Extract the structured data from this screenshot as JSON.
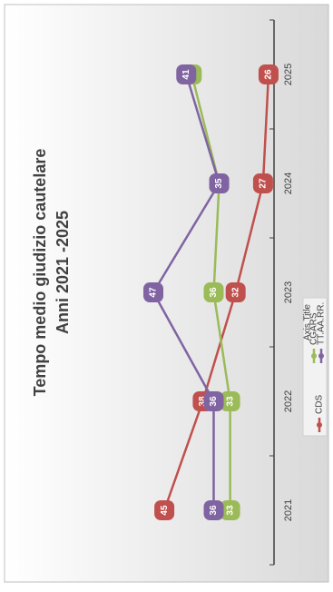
{
  "chart_data": {
    "type": "line",
    "title": "Tempo medio giudizio cautelare",
    "subtitle": "Anni 2021 -2025",
    "x_axis_title": "Axis Title",
    "categories": [
      "2021",
      "2022",
      "2023",
      "2024",
      "2025"
    ],
    "series": [
      {
        "name": "CDS",
        "color": "#c0504d",
        "values": [
          45,
          38,
          32,
          27,
          26
        ]
      },
      {
        "name": "CGARS",
        "color": "#9bbb59",
        "values": [
          33,
          33,
          36,
          35,
          40
        ]
      },
      {
        "name": "TT.AA.RR.",
        "color": "#8064a2",
        "values": [
          36,
          36,
          47,
          35,
          41
        ]
      }
    ],
    "ylim": [
      25,
      70
    ],
    "legend": "bottom"
  }
}
